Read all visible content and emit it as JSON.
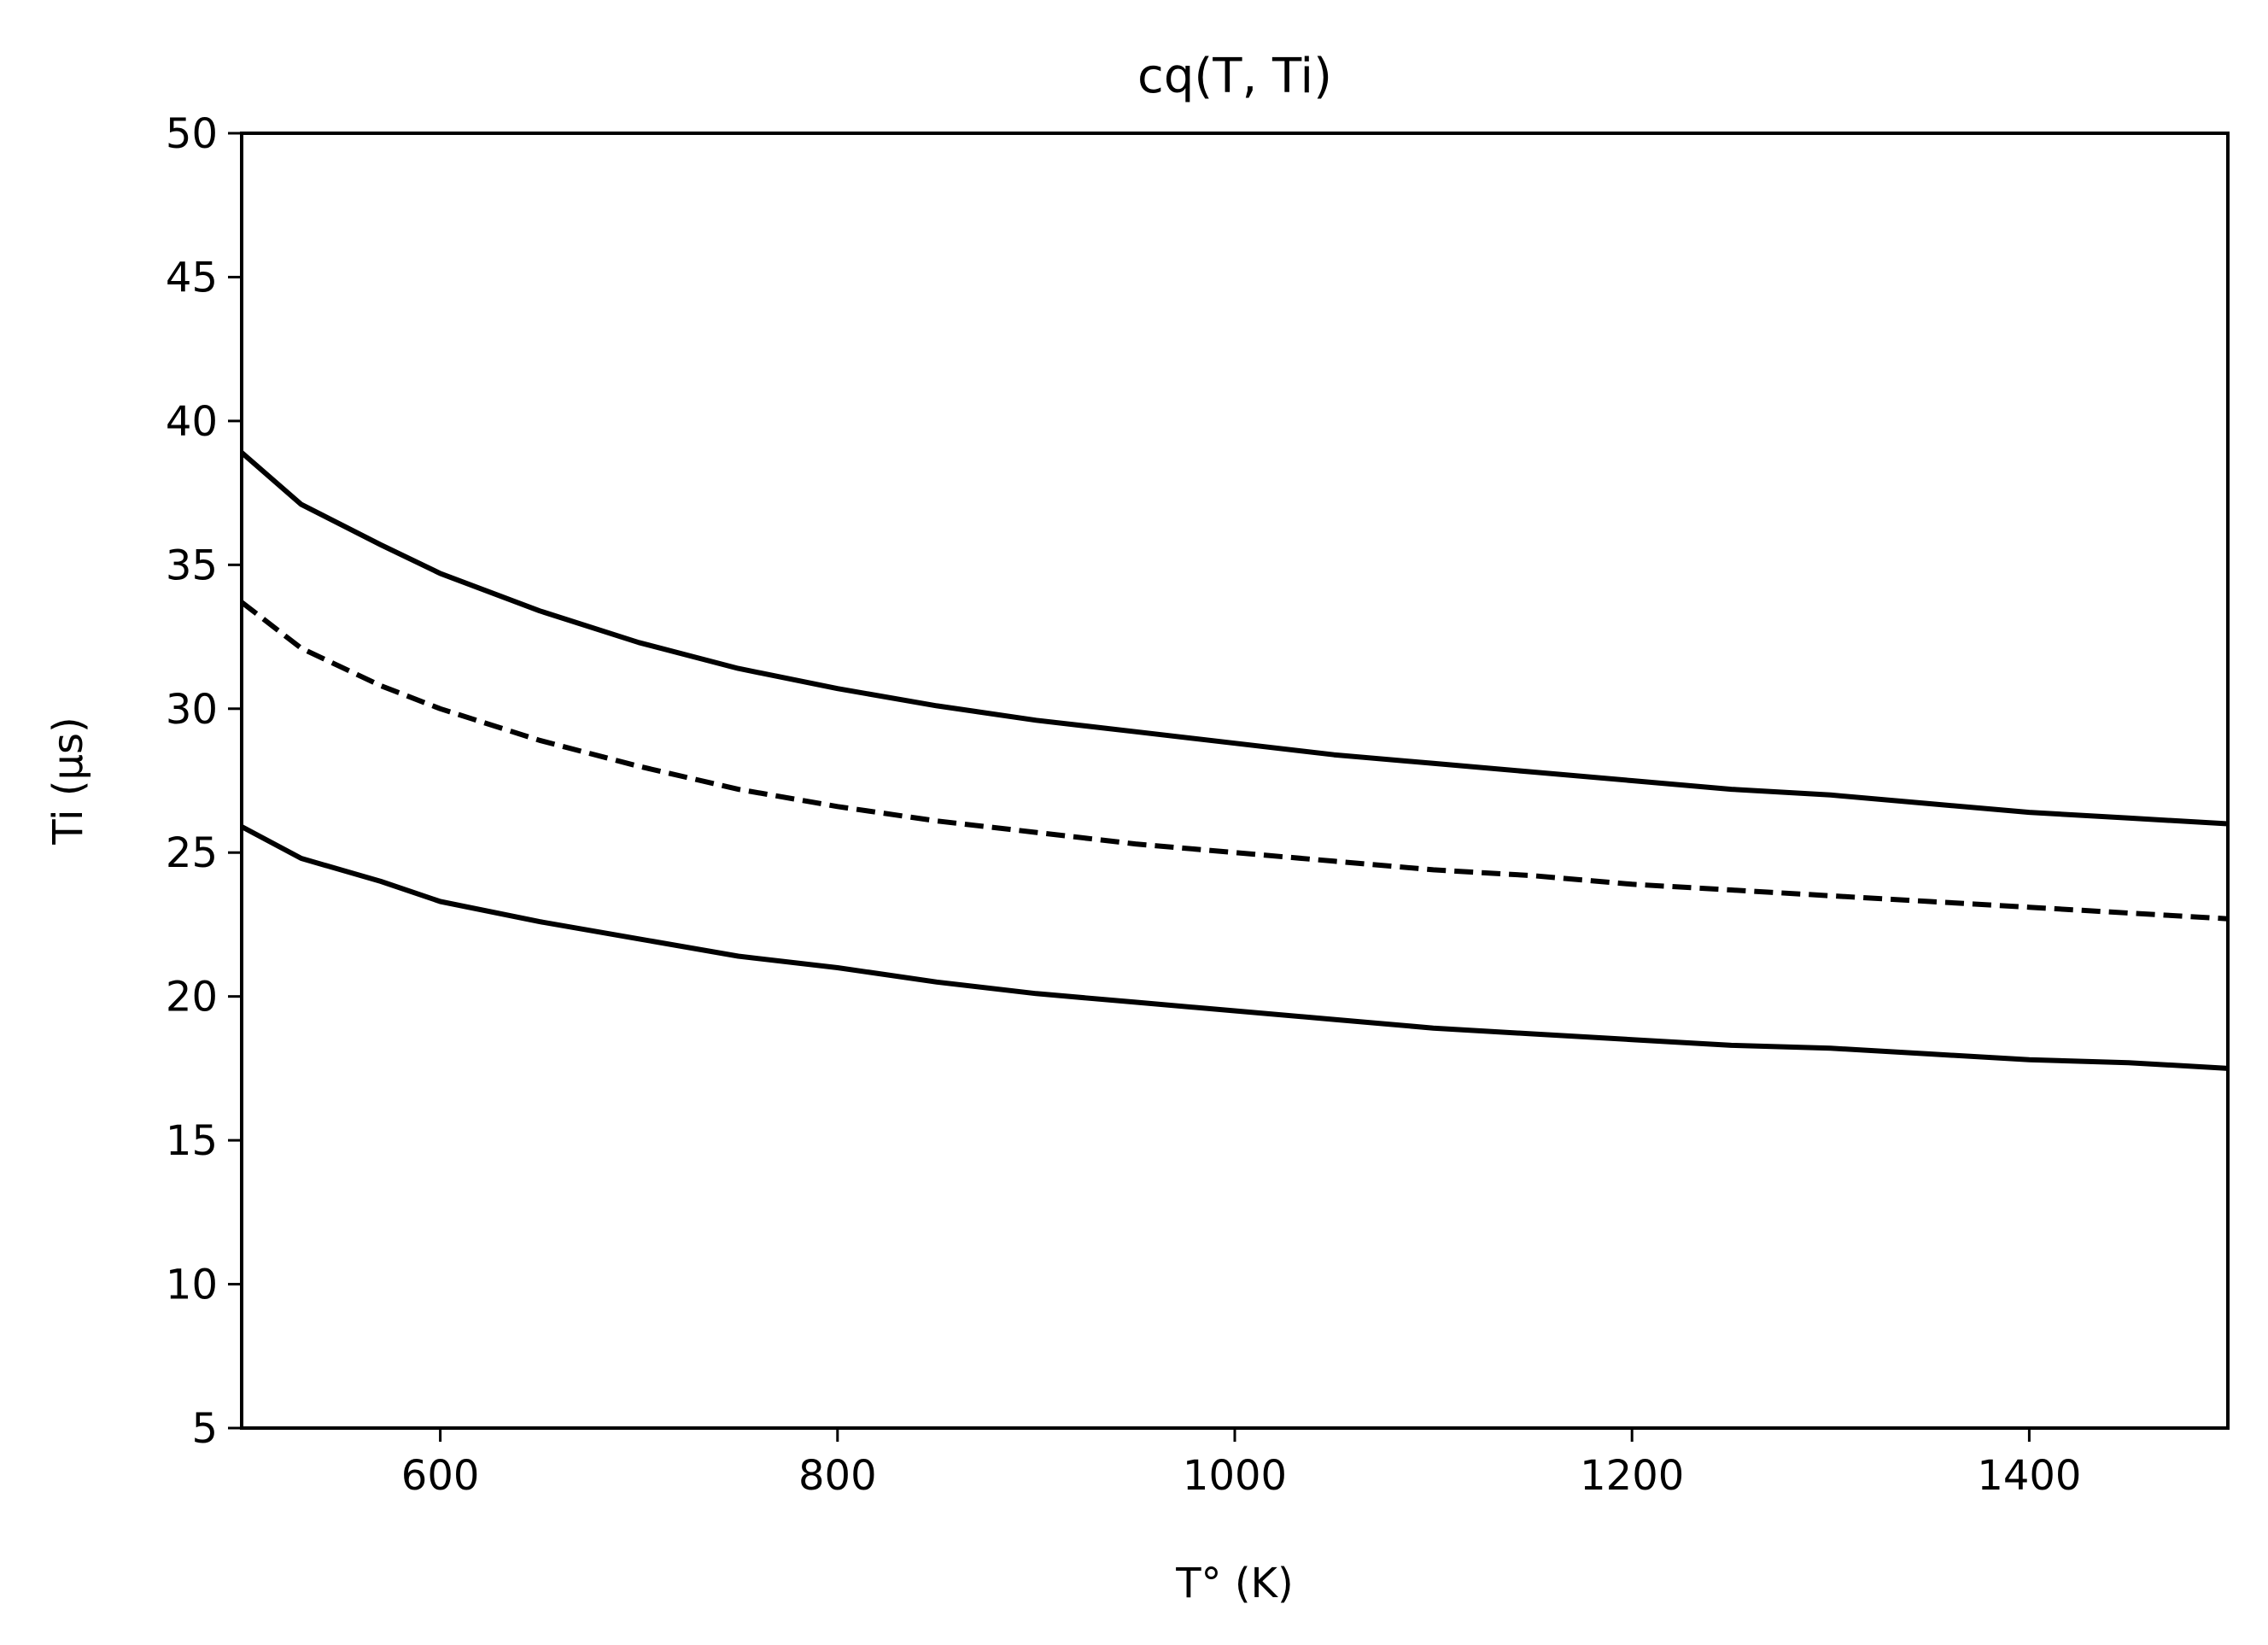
{
  "chart_data": {
    "type": "line",
    "title": "cq(T, Ti)",
    "xlabel": "T° (K)",
    "ylabel": "Ti (µs)",
    "xlim": [
      500,
      1500
    ],
    "ylim": [
      5,
      50
    ],
    "xticks": [
      600,
      800,
      1000,
      1200,
      1400
    ],
    "yticks": [
      5,
      10,
      15,
      20,
      25,
      30,
      35,
      40,
      45,
      50
    ],
    "grid": false,
    "x": [
      500,
      530,
      570,
      600,
      650,
      700,
      750,
      800,
      850,
      900,
      950,
      1000,
      1050,
      1100,
      1150,
      1200,
      1250,
      1300,
      1350,
      1400,
      1450,
      1500
    ],
    "series": [
      {
        "style": "solid",
        "color": "#000000",
        "values": [
          38.9,
          37.1,
          35.7,
          34.7,
          33.4,
          32.3,
          31.4,
          30.7,
          30.1,
          29.6,
          29.2,
          28.8,
          28.4,
          28.1,
          27.8,
          27.5,
          27.2,
          27.0,
          26.7,
          26.4,
          26.2,
          26.0
        ]
      },
      {
        "style": "dashed",
        "color": "#000000",
        "values": [
          33.7,
          32.1,
          30.8,
          30.0,
          28.9,
          28.0,
          27.2,
          26.6,
          26.1,
          25.7,
          25.3,
          25.0,
          24.7,
          24.4,
          24.2,
          23.9,
          23.7,
          23.5,
          23.3,
          23.1,
          22.9,
          22.7
        ]
      },
      {
        "style": "solid",
        "color": "#000000",
        "values": [
          25.9,
          24.8,
          24.0,
          23.3,
          22.6,
          22.0,
          21.4,
          21.0,
          20.5,
          20.1,
          19.8,
          19.5,
          19.2,
          18.9,
          18.7,
          18.5,
          18.3,
          18.2,
          18.0,
          17.8,
          17.7,
          17.5
        ]
      }
    ]
  }
}
